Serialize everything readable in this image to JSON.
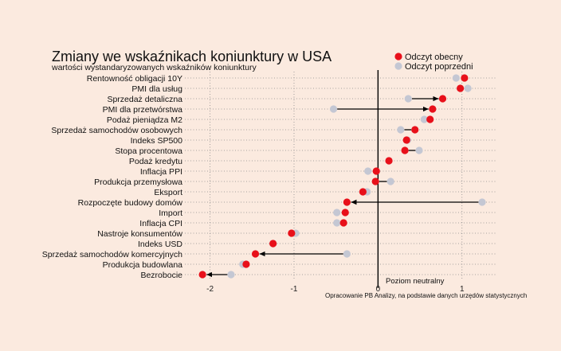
{
  "chart_data": {
    "type": "dot",
    "title": "Zmiany we wskaźnikach koniunktury w USA",
    "subtitle": "wartości wystandaryzowanych wskaźników koniunktury",
    "xlabel": "",
    "ylabel": "",
    "xlim": [
      -2.3,
      1.42
    ],
    "x_ticks": [
      -2,
      -1,
      0,
      1
    ],
    "x_tick_labels": [
      "-2",
      "-1",
      "0",
      "1"
    ],
    "grid": true,
    "legend_position": "top-right",
    "zero_line_label": "Poziom neutralny",
    "source": "Opracowanie PB Analizy, na podstawie danych urzędów statystycznych",
    "colors": {
      "current": "#e8101a",
      "previous": "#c4c7d3",
      "arrow": "#000000",
      "zero_line": "#000000",
      "grid": "#8a8a8a"
    },
    "categories": [
      "Rentowność obligacji 10Y",
      "PMI dla usług",
      "Sprzedaż detaliczna",
      "PMI dla przetwórstwa",
      "Podaż pieniądza M2",
      "Sprzedaż samochodów osobowych",
      "Indeks SP500",
      "Stopa procentowa",
      "Podaż kredytu",
      "Inflacja PPI",
      "Produkcja przemysłowa",
      "Eksport",
      "Rozpoczęte budowy domów",
      "Import",
      "Inflacja CPI",
      "Nastroje konsumentów",
      "Indeks USD",
      "Sprzedaż samochodów komercyjnych",
      "Produkcja budowlana",
      "Bezrobocie"
    ],
    "series": [
      {
        "name": "Odczyt obecny",
        "values": [
          1.03,
          0.98,
          0.77,
          0.65,
          0.62,
          0.44,
          0.34,
          0.32,
          0.13,
          -0.02,
          -0.03,
          -0.18,
          -0.37,
          -0.39,
          -0.41,
          -1.03,
          -1.25,
          -1.46,
          -1.57,
          -2.09
        ]
      },
      {
        "name": "Odczyt poprzedni",
        "values": [
          0.93,
          1.07,
          0.36,
          -0.53,
          0.55,
          0.27,
          0.35,
          0.49,
          0.13,
          -0.12,
          0.15,
          -0.13,
          1.24,
          -0.49,
          -0.49,
          -0.98,
          -1.25,
          -0.37,
          -1.61,
          -1.75
        ]
      }
    ]
  }
}
